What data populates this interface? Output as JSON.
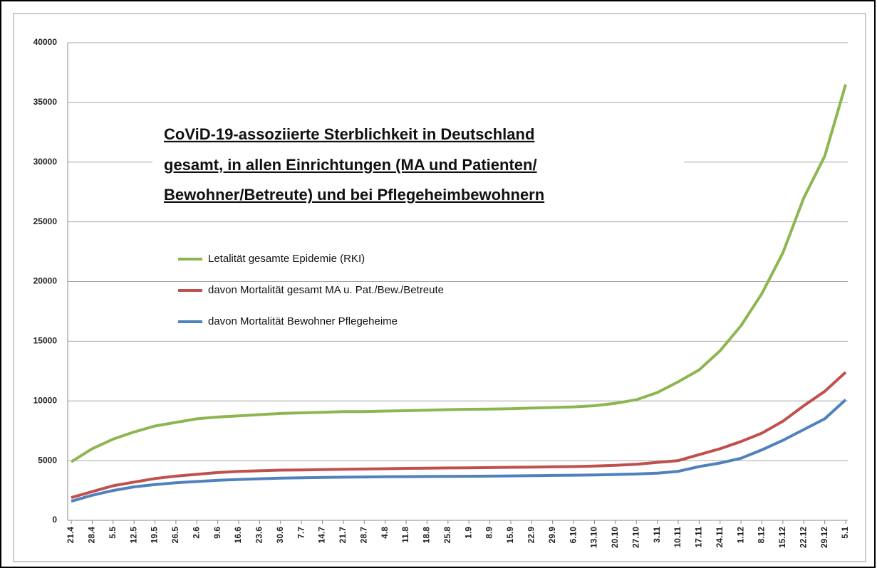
{
  "chart_data": {
    "type": "line",
    "title": [
      "CoViD-19-assoziierte Sterblichkeit in Deutschland",
      "gesamt, in allen Einrichtungen (MA und Patienten/",
      "Bewohner/Betreute) und bei Pflegeheimbewohnern"
    ],
    "categories": [
      "21.4",
      "28.4",
      "5.5",
      "12.5",
      "19.5",
      "26.5",
      "2.6",
      "9.6",
      "16.6",
      "23.6",
      "30.6",
      "7.7",
      "14.7",
      "21.7",
      "28.7",
      "4.8",
      "11.8",
      "18.8",
      "25.8",
      "1.9",
      "8.9",
      "15.9",
      "22.9",
      "29.9",
      "6.10",
      "13.10",
      "20.10",
      "27.10",
      "3.11",
      "10.11",
      "17.11",
      "24.11",
      "1.12",
      "8.12",
      "15.12",
      "22.12",
      "29.12",
      "5.1"
    ],
    "series": [
      {
        "name": "Letalität gesamte Epidemie (RKI)",
        "color": "#8db650",
        "values": [
          4900,
          6000,
          6800,
          7400,
          7900,
          8200,
          8500,
          8650,
          8750,
          8850,
          8950,
          9000,
          9050,
          9100,
          9100,
          9150,
          9180,
          9220,
          9270,
          9300,
          9320,
          9350,
          9400,
          9450,
          9500,
          9600,
          9800,
          10100,
          10700,
          11600,
          12600,
          14200,
          16300,
          19000,
          22400,
          27000,
          30500,
          36500
        ]
      },
      {
        "name": "davon Mortalität gesamt MA u. Pat./Bew./Betreute",
        "color": "#c0504d",
        "values": [
          1900,
          2400,
          2900,
          3200,
          3500,
          3700,
          3850,
          4000,
          4100,
          4150,
          4200,
          4220,
          4250,
          4280,
          4300,
          4320,
          4350,
          4370,
          4390,
          4400,
          4420,
          4440,
          4460,
          4480,
          4500,
          4550,
          4600,
          4700,
          4850,
          5000,
          5500,
          6000,
          6600,
          7300,
          8300,
          9600,
          10800,
          12400
        ]
      },
      {
        "name": "davon Mortalität Bewohner Pflegeheime",
        "color": "#4f81bd",
        "values": [
          1600,
          2100,
          2500,
          2800,
          3000,
          3150,
          3250,
          3350,
          3420,
          3480,
          3530,
          3560,
          3590,
          3610,
          3630,
          3650,
          3660,
          3670,
          3680,
          3690,
          3700,
          3720,
          3740,
          3760,
          3780,
          3800,
          3840,
          3880,
          3950,
          4100,
          4500,
          4800,
          5200,
          5900,
          6700,
          7600,
          8500,
          10100
        ]
      }
    ],
    "ylim": [
      0,
      40000
    ],
    "yticks": [
      0,
      5000,
      10000,
      15000,
      20000,
      25000,
      30000,
      35000,
      40000
    ],
    "grid": true
  }
}
